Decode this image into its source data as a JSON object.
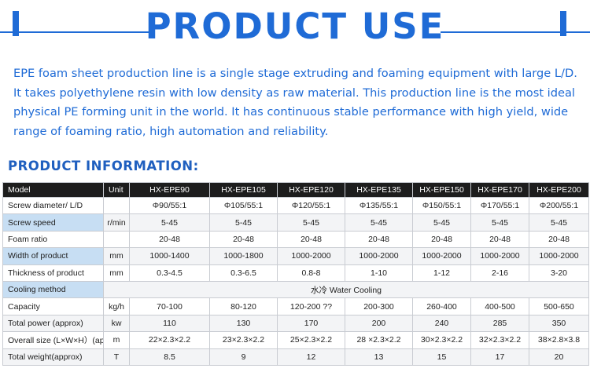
{
  "header": {
    "title": "PRODUCT USE"
  },
  "description": "EPE foam sheet production line is a single stage extruding and foaming equipment with large L/D. It takes polyethylene resin with low density as raw material. This production line is the most ideal physical PE forming unit in the world. It has continuous stable performance with high yield, wide range of foaming ratio, high automation and reliability.",
  "info_title": "PRODUCT INFORMATION:",
  "table": {
    "header": {
      "model": "Model",
      "unit": "Unit",
      "models": [
        "HX-EPE90",
        "HX-EPE105",
        "HX-EPE120",
        "HX-EPE135",
        "HX-EPE150",
        "HX-EPE170",
        "HX-EPE200"
      ]
    },
    "rows": [
      {
        "label": "Screw diameter/  L/D",
        "unit": "",
        "values": [
          "Φ90/55:1",
          "Φ105/55:1",
          "Φ120/55:1",
          "Φ135/55:1",
          "Φ150/55:1",
          "Φ170/55:1",
          "Φ200/55:1"
        ]
      },
      {
        "label": "Screw speed",
        "unit": "r/min",
        "values": [
          "5-45",
          "5-45",
          "5-45",
          "5-45",
          "5-45",
          "5-45",
          "5-45"
        ]
      },
      {
        "label": "Foam ratio",
        "unit": "",
        "values": [
          "20-48",
          "20-48",
          "20-48",
          "20-48",
          "20-48",
          "20-48",
          "20-48"
        ]
      },
      {
        "label": "Width of product",
        "unit": "mm",
        "values": [
          "1000-1400",
          "1000-1800",
          "1000-2000",
          "1000-2000",
          "1000-2000",
          "1000-2000",
          "1000-2000"
        ]
      },
      {
        "label": "Thickness of product",
        "unit": "mm",
        "values": [
          "0.3-4.5",
          "0.3-6.5",
          "0.8-8",
          "1-10",
          "1-12",
          "2-16",
          "3-20"
        ]
      },
      {
        "label": "Cooling method",
        "unit": "",
        "merged": "水冷  Water  Cooling"
      },
      {
        "label": "Capacity",
        "unit": "kg/h",
        "values": [
          "70-100",
          "80-120",
          "120-200 ??",
          "200-300",
          "260-400",
          "400-500",
          "500-650"
        ]
      },
      {
        "label": "Total power (approx)",
        "unit": "kw",
        "values": [
          "110",
          "130",
          "170",
          "200",
          "240",
          "285",
          "350"
        ]
      },
      {
        "label": "Overall size (L×W×H）(approx)",
        "unit": "m",
        "values": [
          "22×2.3×2.2",
          "23×2.3×2.2",
          "25×2.3×2.2",
          "28 ×2.3×2.2",
          "30×2.3×2.2",
          "32×2.3×2.2",
          "38×2.8×3.8"
        ]
      },
      {
        "label": "Total weight(approx)",
        "unit": "T",
        "values": [
          "8.5",
          "9",
          "12",
          "13",
          "15",
          "17",
          "20"
        ]
      }
    ]
  }
}
